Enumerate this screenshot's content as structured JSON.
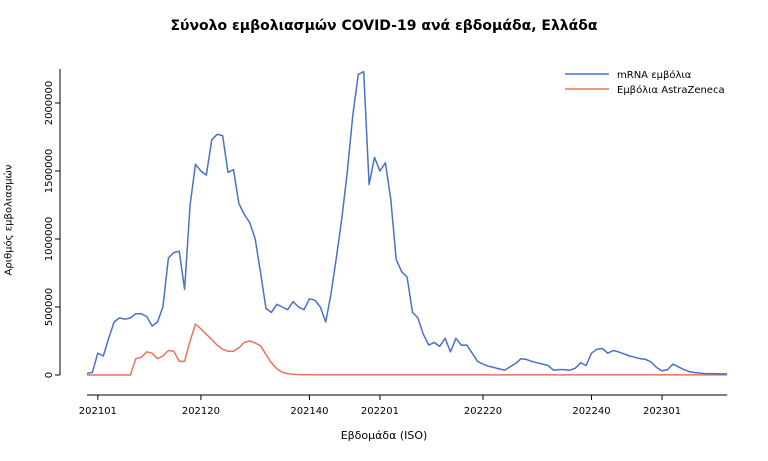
{
  "chart_data": {
    "type": "line",
    "title": "Σύνολο εμβολιασμών COVID-19 ανά εβδομάδα, Ελλάδα",
    "xlabel": "Εβδομάδα (ISO)",
    "ylabel": "Αριθμός εμβολιασμών",
    "x_tick_labels": [
      "202101",
      "202120",
      "202140",
      "202201",
      "202220",
      "202240",
      "202301"
    ],
    "y_ticks": [
      0,
      500000,
      1000000,
      1500000,
      2000000
    ],
    "ylim": [
      0,
      2250000
    ],
    "legend_position": "top-right",
    "grid": false,
    "series": [
      {
        "name": "mRNA εμβόλια",
        "color": "#4a72c4",
        "values": [
          10000,
          20000,
          160000,
          140000,
          270000,
          390000,
          420000,
          410000,
          420000,
          450000,
          450000,
          430000,
          360000,
          390000,
          500000,
          860000,
          900000,
          910000,
          630000,
          1250000,
          1550000,
          1500000,
          1470000,
          1730000,
          1770000,
          1760000,
          1490000,
          1510000,
          1260000,
          1180000,
          1120000,
          1000000,
          750000,
          490000,
          460000,
          520000,
          500000,
          480000,
          540000,
          500000,
          480000,
          560000,
          550000,
          500000,
          390000,
          600000,
          870000,
          1160000,
          1500000,
          1910000,
          2210000,
          2230000,
          1400000,
          1600000,
          1500000,
          1560000,
          1290000,
          850000,
          760000,
          720000,
          460000,
          420000,
          300000,
          220000,
          240000,
          210000,
          270000,
          170000,
          270000,
          220000,
          220000,
          160000,
          100000,
          80000,
          65000,
          55000,
          45000,
          35000,
          60000,
          85000,
          120000,
          115000,
          100000,
          90000,
          80000,
          70000,
          35000,
          40000,
          40000,
          35000,
          50000,
          90000,
          70000,
          160000,
          190000,
          195000,
          160000,
          180000,
          170000,
          155000,
          140000,
          130000,
          120000,
          115000,
          95000,
          55000,
          30000,
          40000,
          80000,
          60000,
          40000,
          25000,
          18000,
          14000,
          10000,
          10000,
          9000,
          8000,
          8000
        ]
      },
      {
        "name": "Εμβόλια AstraZeneca",
        "color": "#e8735c",
        "values": [
          0,
          0,
          0,
          0,
          0,
          0,
          0,
          0,
          0,
          120000,
          130000,
          170000,
          160000,
          120000,
          140000,
          180000,
          175000,
          100000,
          100000,
          250000,
          375000,
          340000,
          300000,
          260000,
          220000,
          190000,
          175000,
          175000,
          200000,
          240000,
          250000,
          235000,
          215000,
          150000,
          90000,
          45000,
          20000,
          10000,
          5000,
          3000,
          2000,
          1500,
          1000,
          1000,
          1000,
          500,
          500,
          500,
          500,
          500,
          500,
          500,
          500,
          500,
          500,
          500,
          500,
          500,
          500,
          500,
          500,
          500,
          500,
          500,
          500,
          500,
          500,
          500,
          500,
          500,
          500,
          500,
          500,
          500,
          500,
          500,
          500,
          500,
          500,
          500,
          500,
          500,
          500,
          500,
          500,
          500,
          500,
          500,
          500,
          500,
          500,
          500,
          500,
          500,
          500,
          500,
          500,
          500,
          500,
          500,
          500,
          500,
          500,
          500,
          500,
          500,
          500,
          500,
          500,
          500,
          500,
          500,
          500,
          500,
          500,
          500,
          500,
          500,
          500
        ]
      }
    ]
  }
}
